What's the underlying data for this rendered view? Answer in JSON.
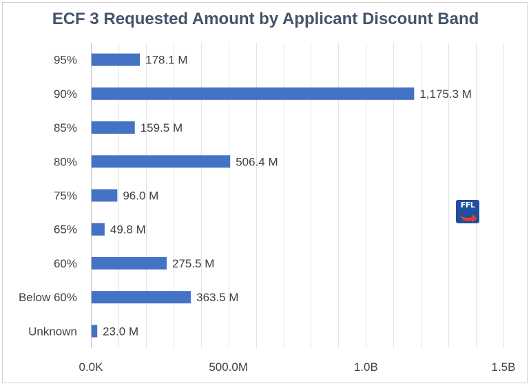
{
  "chart_data": {
    "type": "bar",
    "orientation": "horizontal",
    "title": "ECF 3 Requested Amount by Applicant Discount Band",
    "categories": [
      "95%",
      "90%",
      "85%",
      "80%",
      "75%",
      "65%",
      "60%",
      "Below 60%",
      "Unknown"
    ],
    "values": [
      178.1,
      1175.3,
      159.5,
      506.4,
      96.0,
      49.8,
      275.5,
      363.5,
      23.0
    ],
    "value_labels": [
      "178.1 M",
      "1,175.3 M",
      "159.5 M",
      "506.4 M",
      "96.0 M",
      "49.8 M",
      "275.5 M",
      "363.5 M",
      "23.0 M"
    ],
    "value_unit": "M",
    "xlim": [
      0,
      1500
    ],
    "x_ticks": [
      0,
      500,
      1000,
      1500
    ],
    "x_tick_labels": [
      "0.0K",
      "500.0M",
      "1.0B",
      "1.5B"
    ],
    "grid": "vertical",
    "legend": "none",
    "bar_color": "#4472c4"
  },
  "logo": {
    "text": "FFL"
  }
}
